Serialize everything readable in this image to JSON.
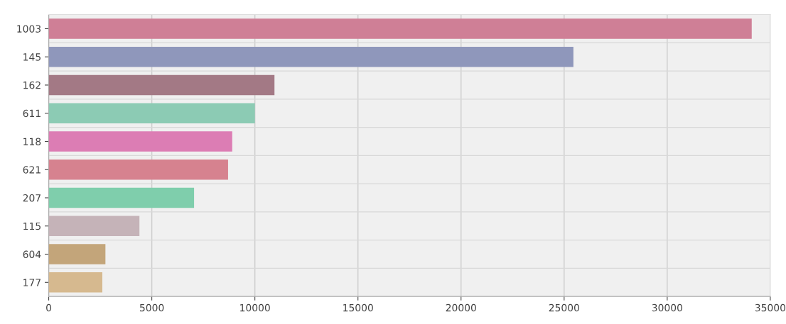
{
  "chart_data": {
    "type": "bar",
    "orientation": "horizontal",
    "categories": [
      "1003",
      "145",
      "162",
      "611",
      "118",
      "621",
      "207",
      "115",
      "604",
      "177"
    ],
    "values": [
      34100,
      25450,
      10950,
      10000,
      8900,
      8700,
      7050,
      4400,
      2750,
      2600
    ],
    "colors": [
      "#cf7f96",
      "#8f97bb",
      "#a37985",
      "#8ccbb4",
      "#dc7db4",
      "#d6828f",
      "#7fceac",
      "#c5b3b8",
      "#c3a57a",
      "#d6b98f"
    ],
    "xlim": [
      0,
      35000
    ],
    "xticks": [
      0,
      5000,
      10000,
      15000,
      20000,
      25000,
      30000,
      35000
    ],
    "grid": true
  }
}
